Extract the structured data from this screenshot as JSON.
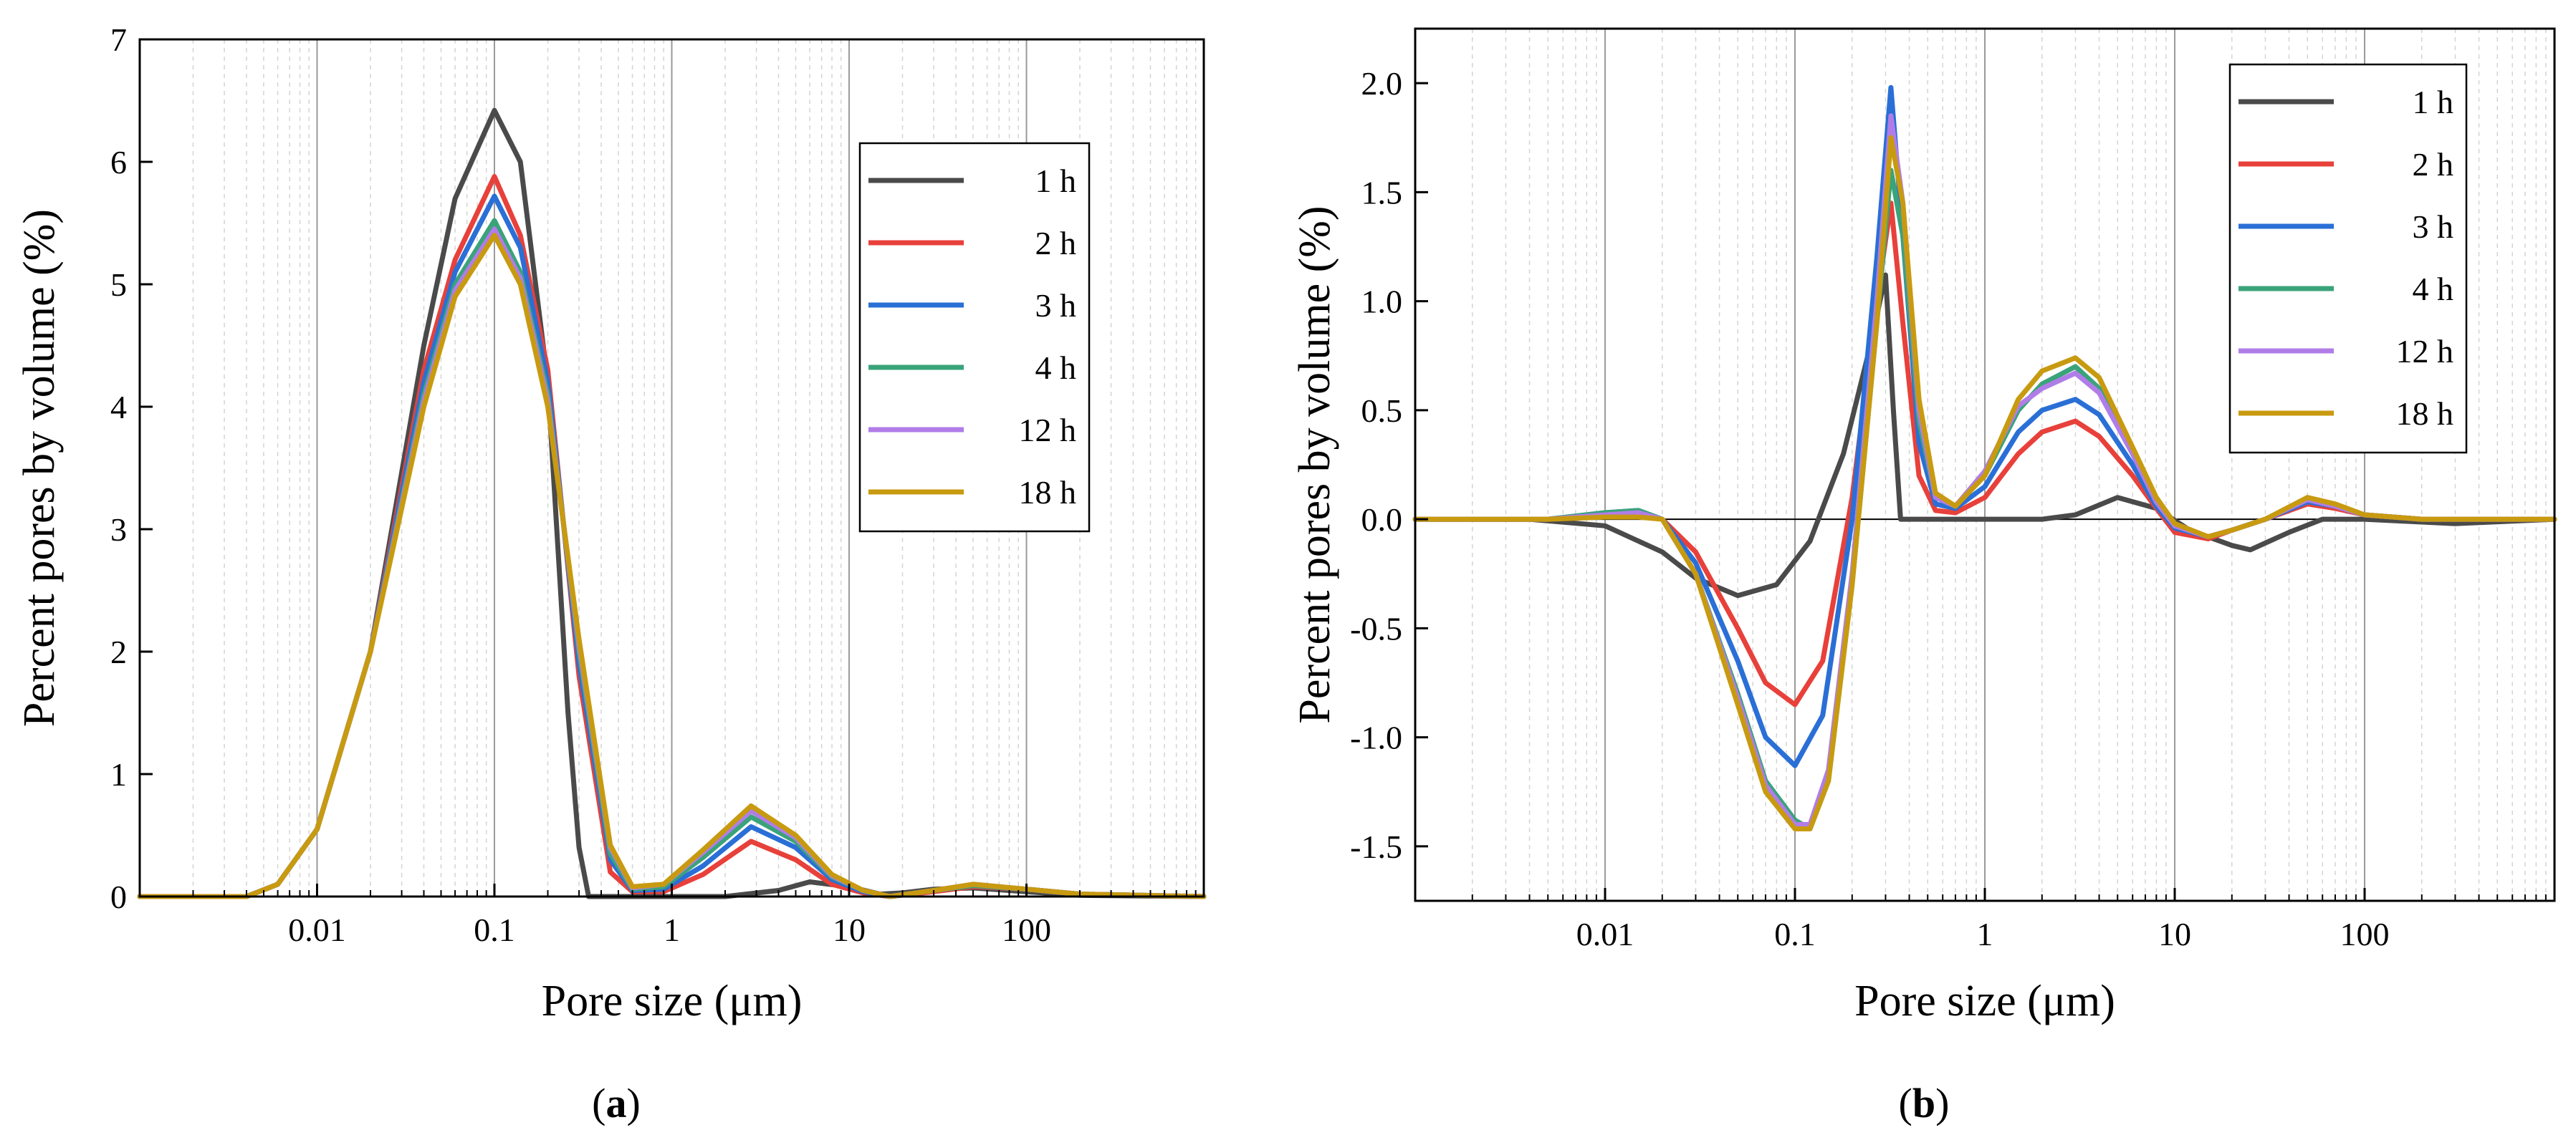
{
  "chart_data": [
    {
      "type": "line",
      "panel_label": "a",
      "xscale": "log",
      "xlim": [
        0.001,
        1000
      ],
      "ylim": [
        0,
        7
      ],
      "xticks": [
        "0.01",
        "0.1",
        "1",
        "10",
        "100"
      ],
      "yticks": [
        "0",
        "1",
        "2",
        "3",
        "4",
        "5",
        "6",
        "7"
      ],
      "xlabel": "Pore size (μm)",
      "ylabel": "Percent pores by volume (%)",
      "grid": true,
      "legend": "right",
      "series": [
        {
          "name": "1 h",
          "color": "#4a4a4a",
          "x": [
            0.001,
            0.004,
            0.006,
            0.01,
            0.02,
            0.04,
            0.06,
            0.1,
            0.14,
            0.2,
            0.26,
            0.3,
            0.34,
            0.5,
            1,
            2,
            4,
            6,
            10,
            15,
            20,
            30,
            50,
            100,
            200,
            1000
          ],
          "y": [
            0,
            0,
            0.1,
            0.55,
            2.0,
            4.5,
            5.7,
            6.42,
            6.0,
            4.2,
            1.5,
            0.4,
            0,
            0,
            0,
            0,
            0.05,
            0.12,
            0.08,
            0.02,
            0.03,
            0.06,
            0.07,
            0.04,
            0.01,
            0
          ]
        },
        {
          "name": "2 h",
          "color": "#e8403a",
          "x": [
            0.001,
            0.004,
            0.006,
            0.01,
            0.02,
            0.04,
            0.06,
            0.1,
            0.14,
            0.2,
            0.3,
            0.45,
            0.6,
            0.9,
            1.5,
            2.8,
            5,
            8,
            12,
            17,
            30,
            50,
            100,
            200,
            1000
          ],
          "y": [
            0,
            0,
            0.1,
            0.55,
            2.0,
            4.3,
            5.2,
            5.88,
            5.4,
            4.3,
            1.8,
            0.2,
            0.04,
            0.04,
            0.18,
            0.45,
            0.3,
            0.1,
            0.03,
            0,
            0.04,
            0.08,
            0.06,
            0.02,
            0
          ]
        },
        {
          "name": "3 h",
          "color": "#2a6fd6",
          "x": [
            0.001,
            0.004,
            0.006,
            0.01,
            0.02,
            0.04,
            0.06,
            0.1,
            0.14,
            0.2,
            0.3,
            0.45,
            0.6,
            0.9,
            1.5,
            2.8,
            5,
            8,
            12,
            17,
            30,
            50,
            100,
            200,
            1000
          ],
          "y": [
            0,
            0,
            0.1,
            0.55,
            2.0,
            4.2,
            5.1,
            5.72,
            5.3,
            4.2,
            1.9,
            0.3,
            0.05,
            0.06,
            0.25,
            0.57,
            0.4,
            0.14,
            0.04,
            0,
            0.05,
            0.09,
            0.06,
            0.02,
            0
          ]
        },
        {
          "name": "4 h",
          "color": "#3aa37a",
          "x": [
            0.001,
            0.004,
            0.006,
            0.01,
            0.02,
            0.04,
            0.06,
            0.1,
            0.14,
            0.2,
            0.3,
            0.45,
            0.6,
            0.9,
            1.5,
            2.8,
            5,
            8,
            12,
            17,
            30,
            50,
            100,
            200,
            1000
          ],
          "y": [
            0,
            0,
            0.1,
            0.55,
            2.0,
            4.1,
            5.0,
            5.52,
            5.1,
            4.1,
            2.0,
            0.35,
            0.06,
            0.08,
            0.32,
            0.65,
            0.45,
            0.16,
            0.05,
            0,
            0.05,
            0.09,
            0.06,
            0.02,
            0
          ]
        },
        {
          "name": "12 h",
          "color": "#b07de8",
          "x": [
            0.001,
            0.004,
            0.006,
            0.01,
            0.02,
            0.04,
            0.06,
            0.1,
            0.14,
            0.2,
            0.3,
            0.45,
            0.6,
            0.9,
            1.5,
            2.8,
            5,
            8,
            12,
            17,
            30,
            50,
            100,
            200,
            1000
          ],
          "y": [
            0,
            0,
            0.1,
            0.55,
            2.0,
            4.05,
            4.95,
            5.45,
            5.05,
            4.05,
            2.05,
            0.4,
            0.07,
            0.1,
            0.36,
            0.7,
            0.48,
            0.17,
            0.05,
            0,
            0.05,
            0.1,
            0.06,
            0.02,
            0
          ]
        },
        {
          "name": "18 h",
          "color": "#c89a10",
          "x": [
            0.001,
            0.004,
            0.006,
            0.01,
            0.02,
            0.04,
            0.06,
            0.1,
            0.14,
            0.2,
            0.3,
            0.45,
            0.6,
            0.9,
            1.5,
            2.8,
            5,
            8,
            12,
            17,
            30,
            50,
            100,
            200,
            1000
          ],
          "y": [
            0,
            0,
            0.1,
            0.55,
            2.0,
            4.0,
            4.9,
            5.4,
            5.0,
            4.0,
            2.1,
            0.42,
            0.08,
            0.1,
            0.38,
            0.74,
            0.5,
            0.18,
            0.05,
            0,
            0.05,
            0.1,
            0.06,
            0.02,
            0
          ]
        }
      ]
    },
    {
      "type": "line",
      "panel_label": "b",
      "xscale": "log",
      "xlim": [
        0.001,
        1000
      ],
      "ylim": [
        -1.75,
        2.25
      ],
      "xticks": [
        "0.01",
        "0.1",
        "1",
        "10",
        "100"
      ],
      "yticks": [
        "-1.5",
        "-1.0",
        "-0.5",
        "0.0",
        "0.5",
        "1.0",
        "1.5",
        "2.0"
      ],
      "xlabel": "Pore size (μm)",
      "ylabel": "Percent pores by volume (%)",
      "grid": true,
      "legend": "top-right",
      "series": [
        {
          "name": "1 h",
          "color": "#4a4a4a",
          "x": [
            0.001,
            0.004,
            0.01,
            0.02,
            0.03,
            0.05,
            0.08,
            0.12,
            0.18,
            0.25,
            0.3,
            0.33,
            0.36,
            0.5,
            1,
            2,
            3,
            5,
            8,
            12,
            20,
            25,
            40,
            60,
            100,
            300,
            1000
          ],
          "y": [
            0,
            0,
            -0.03,
            -0.15,
            -0.27,
            -0.35,
            -0.3,
            -0.1,
            0.3,
            0.8,
            1.12,
            0.5,
            0,
            0,
            0,
            0,
            0.02,
            0.1,
            0.05,
            -0.05,
            -0.12,
            -0.14,
            -0.06,
            0,
            0,
            -0.02,
            0
          ]
        },
        {
          "name": "2 h",
          "color": "#e8403a",
          "x": [
            0.001,
            0.005,
            0.01,
            0.015,
            0.02,
            0.03,
            0.05,
            0.07,
            0.1,
            0.14,
            0.2,
            0.27,
            0.32,
            0.37,
            0.45,
            0.55,
            0.7,
            1,
            1.5,
            2,
            3,
            4,
            6,
            8,
            10,
            15,
            20,
            30,
            50,
            70,
            100,
            200,
            1000
          ],
          "y": [
            0,
            0,
            0.02,
            0.03,
            0.0,
            -0.15,
            -0.5,
            -0.75,
            -0.85,
            -0.65,
            0.1,
            1.0,
            1.45,
            0.9,
            0.2,
            0.04,
            0.03,
            0.1,
            0.3,
            0.4,
            0.45,
            0.38,
            0.2,
            0.05,
            -0.06,
            -0.09,
            -0.05,
            0.0,
            0.07,
            0.05,
            0.02,
            0,
            0
          ]
        },
        {
          "name": "3 h",
          "color": "#2a6fd6",
          "x": [
            0.001,
            0.005,
            0.01,
            0.015,
            0.02,
            0.03,
            0.05,
            0.07,
            0.1,
            0.14,
            0.2,
            0.27,
            0.32,
            0.37,
            0.45,
            0.55,
            0.7,
            1,
            1.5,
            2,
            3,
            4,
            6,
            8,
            10,
            15,
            20,
            30,
            50,
            70,
            100,
            200,
            1000
          ],
          "y": [
            0,
            0,
            0.03,
            0.04,
            0.0,
            -0.2,
            -0.65,
            -1.0,
            -1.13,
            -0.9,
            0.0,
            1.2,
            1.98,
            1.3,
            0.35,
            0.07,
            0.05,
            0.15,
            0.4,
            0.5,
            0.55,
            0.48,
            0.25,
            0.06,
            -0.04,
            -0.08,
            -0.05,
            0.0,
            0.08,
            0.06,
            0.02,
            0,
            0
          ]
        },
        {
          "name": "4 h",
          "color": "#3aa37a",
          "x": [
            0.001,
            0.005,
            0.01,
            0.015,
            0.02,
            0.03,
            0.05,
            0.07,
            0.1,
            0.12,
            0.15,
            0.2,
            0.27,
            0.32,
            0.37,
            0.45,
            0.55,
            0.7,
            1,
            1.5,
            2,
            3,
            4,
            6,
            8,
            10,
            15,
            20,
            30,
            50,
            70,
            100,
            200,
            1000
          ],
          "y": [
            0,
            0,
            0.03,
            0.04,
            0.0,
            -0.25,
            -0.8,
            -1.2,
            -1.38,
            -1.42,
            -1.2,
            -0.3,
            0.9,
            1.6,
            1.3,
            0.45,
            0.1,
            0.06,
            0.2,
            0.5,
            0.62,
            0.7,
            0.6,
            0.3,
            0.08,
            -0.03,
            -0.08,
            -0.05,
            0.0,
            0.09,
            0.06,
            0.02,
            0,
            0
          ]
        },
        {
          "name": "12 h",
          "color": "#b07de8",
          "x": [
            0.001,
            0.005,
            0.01,
            0.015,
            0.02,
            0.03,
            0.05,
            0.07,
            0.1,
            0.12,
            0.15,
            0.2,
            0.27,
            0.32,
            0.37,
            0.45,
            0.55,
            0.7,
            1,
            1.5,
            2,
            3,
            4,
            6,
            8,
            10,
            15,
            20,
            30,
            50,
            70,
            100,
            200,
            1000
          ],
          "y": [
            0,
            0,
            0.02,
            0.03,
            0.0,
            -0.25,
            -0.82,
            -1.22,
            -1.4,
            -1.4,
            -1.15,
            -0.25,
            1.0,
            1.85,
            1.45,
            0.5,
            0.1,
            0.06,
            0.22,
            0.52,
            0.6,
            0.67,
            0.58,
            0.3,
            0.08,
            -0.03,
            -0.08,
            -0.05,
            0.0,
            0.09,
            0.06,
            0.02,
            0,
            0
          ]
        },
        {
          "name": "18 h",
          "color": "#c89a10",
          "x": [
            0.001,
            0.005,
            0.01,
            0.015,
            0.02,
            0.03,
            0.05,
            0.07,
            0.1,
            0.12,
            0.15,
            0.2,
            0.27,
            0.32,
            0.37,
            0.45,
            0.55,
            0.7,
            1,
            1.5,
            2,
            3,
            4,
            6,
            8,
            10,
            15,
            20,
            30,
            50,
            70,
            100,
            200,
            1000
          ],
          "y": [
            0,
            0,
            0.01,
            0.01,
            0.0,
            -0.25,
            -0.85,
            -1.25,
            -1.42,
            -1.42,
            -1.2,
            -0.3,
            0.9,
            1.75,
            1.45,
            0.55,
            0.12,
            0.06,
            0.2,
            0.55,
            0.68,
            0.74,
            0.65,
            0.33,
            0.1,
            -0.02,
            -0.08,
            -0.05,
            0.0,
            0.1,
            0.07,
            0.02,
            0,
            0
          ]
        }
      ]
    }
  ]
}
